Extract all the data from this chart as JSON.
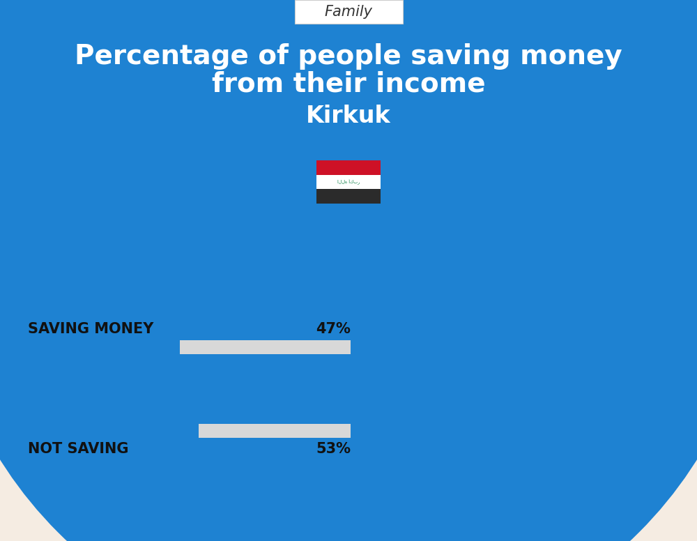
{
  "title_line1": "Percentage of people saving money",
  "title_line2": "from their income",
  "subtitle": "Kirkuk",
  "category_label": "Family",
  "bar1_label": "SAVING MONEY",
  "bar1_value": 47,
  "bar1_pct": "47%",
  "bar2_label": "NOT SAVING",
  "bar2_value": 53,
  "bar2_pct": "53%",
  "background_top": "#1e82d2",
  "background_bottom": "#f5ece2",
  "bar_blue": "#1e82d2",
  "bar_gray": "#d8d8d8",
  "title_color": "#ffffff",
  "subtitle_color": "#ffffff",
  "label_color": "#111111",
  "category_box_color": "#ffffff",
  "fig_width": 10.0,
  "fig_height": 7.76,
  "family_box_border": "#cccccc",
  "family_text_color": "#333333"
}
